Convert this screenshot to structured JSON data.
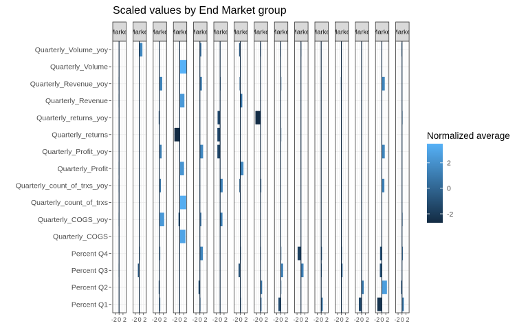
{
  "chart_data": {
    "type": "heatmap",
    "title": "Scaled values by End Market group",
    "strip_label": "Market",
    "facet_count": 15,
    "x_tick_labels": [
      "-2",
      "0",
      "2"
    ],
    "xlim": [
      -3.2,
      3.6
    ],
    "rows": [
      "Quarterly_Volume_yoy",
      "Quarterly_Volume",
      "Quarterly_Revenue_yoy",
      "Quarterly_Revenue",
      "Quarterly_returns_yoy",
      "Quarterly_returns",
      "Quarterly_Profit_yoy",
      "Quarterly_Profit",
      "Quarterly_count_of_trxs_yoy",
      "Quarterly_count_of_trxs",
      "Quarterly_COGS_yoy",
      "Quarterly_COGS",
      "Percent Q4",
      "Percent Q3",
      "Percent Q2",
      "Percent Q1"
    ],
    "values": [
      [
        0,
        1.6,
        0,
        0,
        0.7,
        0,
        -0.6,
        0.3,
        -0.2,
        -0.1,
        0,
        0,
        0,
        0,
        -0.3
      ],
      [
        0,
        0,
        0,
        3.5,
        0,
        0,
        0,
        0,
        0,
        0,
        0,
        0,
        0,
        0,
        0
      ],
      [
        -0.2,
        0,
        1.4,
        0,
        1.0,
        0.2,
        -0.4,
        0,
        0.3,
        0,
        -0.2,
        -0.3,
        0,
        1.5,
        0
      ],
      [
        -0.2,
        0,
        0,
        2.4,
        0,
        0,
        1.0,
        0,
        0,
        0,
        0,
        0,
        0,
        0,
        0
      ],
      [
        0,
        -0.2,
        -0.4,
        0,
        0,
        -1.3,
        0,
        -2.6,
        0,
        0,
        0,
        0,
        0,
        0,
        0.2
      ],
      [
        0,
        0,
        0,
        -2.7,
        0,
        -1.4,
        0,
        0,
        0.2,
        0,
        0,
        0,
        0,
        0,
        0
      ],
      [
        0,
        0,
        1.1,
        0,
        1.6,
        -1.4,
        0,
        0,
        0,
        0,
        0,
        0,
        0,
        1.5,
        0
      ],
      [
        -0.2,
        0,
        0,
        2.2,
        0,
        0,
        1.6,
        0,
        0,
        0,
        0,
        0,
        0,
        0,
        0
      ],
      [
        -0.2,
        0,
        0.7,
        0,
        0,
        1.3,
        -0.5,
        0.4,
        0,
        0,
        0,
        0,
        0,
        1.3,
        0
      ],
      [
        0,
        0,
        0,
        3.3,
        0,
        0,
        0,
        0,
        0,
        0,
        0,
        0,
        0,
        0,
        0
      ],
      [
        -0.2,
        0,
        2.4,
        -0.6,
        0.7,
        1.2,
        0,
        0,
        0,
        0,
        0,
        0,
        0,
        0,
        0.3
      ],
      [
        0,
        0,
        0,
        2.9,
        0,
        0,
        0,
        0,
        0,
        0,
        0,
        0,
        0,
        0,
        0
      ],
      [
        0,
        0.3,
        0.4,
        0,
        1.5,
        0,
        0.2,
        0.2,
        0.3,
        -1.7,
        0.4,
        0.3,
        0,
        -0.9,
        0.4
      ],
      [
        -0.2,
        -0.7,
        0,
        0,
        0,
        0,
        -0.9,
        0,
        1.2,
        1.3,
        0.3,
        0.6,
        0,
        -1.0,
        0
      ],
      [
        0,
        0,
        -0.4,
        0,
        -0.7,
        0,
        0,
        0.8,
        0.3,
        0,
        0,
        0,
        1.1,
        2.6,
        -0.5
      ],
      [
        0,
        0,
        0.4,
        0,
        0.3,
        0,
        0.3,
        0.5,
        -1.2,
        0,
        0.8,
        0,
        -1.4,
        -2.3,
        0.9
      ]
    ],
    "legend": {
      "title": "Normalized average",
      "breaks": [
        "2",
        "0",
        "-2"
      ],
      "min": -2.7,
      "max": 3.5,
      "low_color": "#132B43",
      "high_color": "#56B1F7",
      "placement": "right"
    },
    "panel_border_color": "#333333",
    "strip_fill": "#d9d9d9",
    "grid": true
  }
}
